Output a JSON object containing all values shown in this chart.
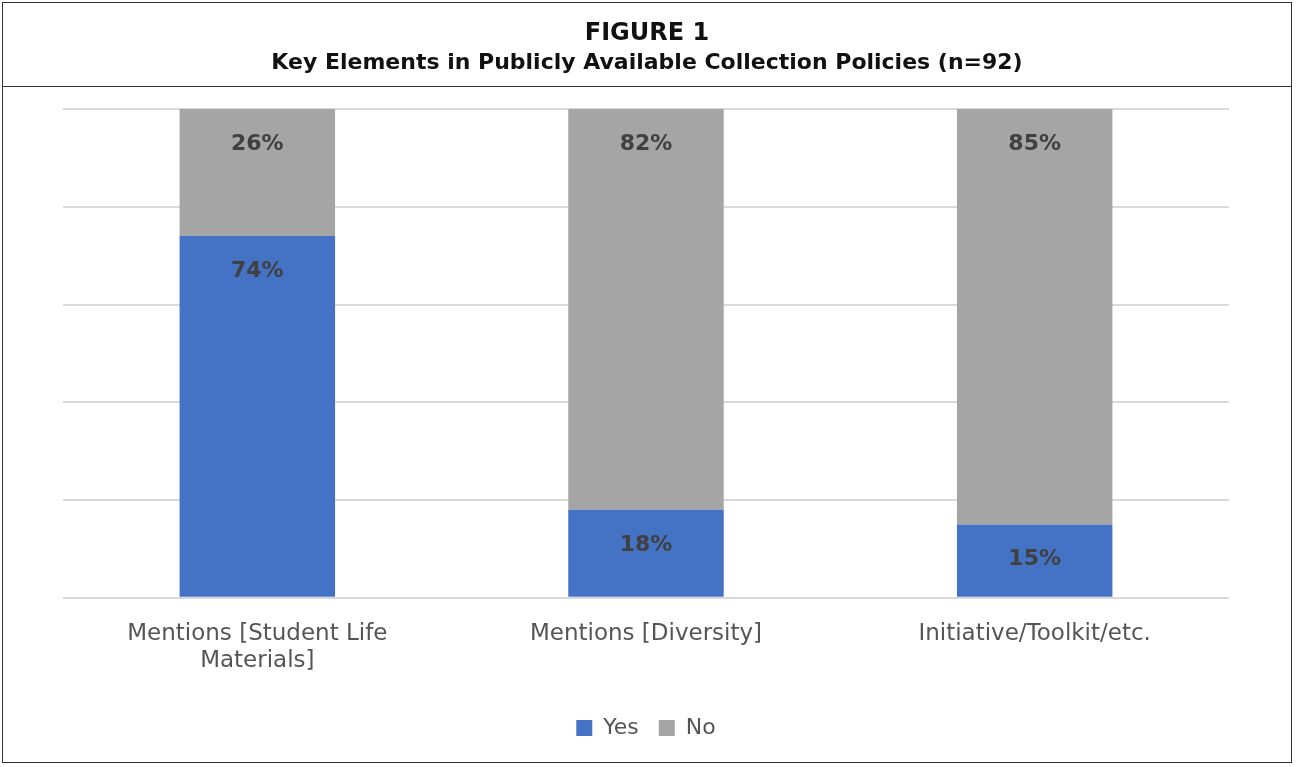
{
  "chart_data": {
    "type": "bar",
    "title": "FIGURE 1",
    "subtitle": "Key Elements in Publicly Available Collection Policies (n=92)",
    "categories": [
      "Mentions [Student Life Materials]",
      "Mentions [Diversity]",
      "Initiative/Toolkit/etc."
    ],
    "series": [
      {
        "name": "Yes",
        "color": "#4472c4",
        "values": [
          74,
          18,
          15
        ],
        "value_labels": [
          "74%",
          "18%",
          "15%"
        ]
      },
      {
        "name": "No",
        "color": "#a5a5a5",
        "values": [
          26,
          82,
          85
        ],
        "value_labels": [
          "26%",
          "82%",
          "85%"
        ]
      }
    ],
    "stacked": true,
    "ylim": [
      0,
      100
    ],
    "yticks": [
      {
        "value": 0,
        "label": null
      },
      {
        "value": 20,
        "label": null
      },
      {
        "value": 40,
        "label": null
      },
      {
        "value": 60,
        "label": null
      },
      {
        "value": 80,
        "label": null
      },
      {
        "value": 100,
        "label": null
      }
    ],
    "grid": "y",
    "tick_labels": "x",
    "legend": "bottom"
  }
}
